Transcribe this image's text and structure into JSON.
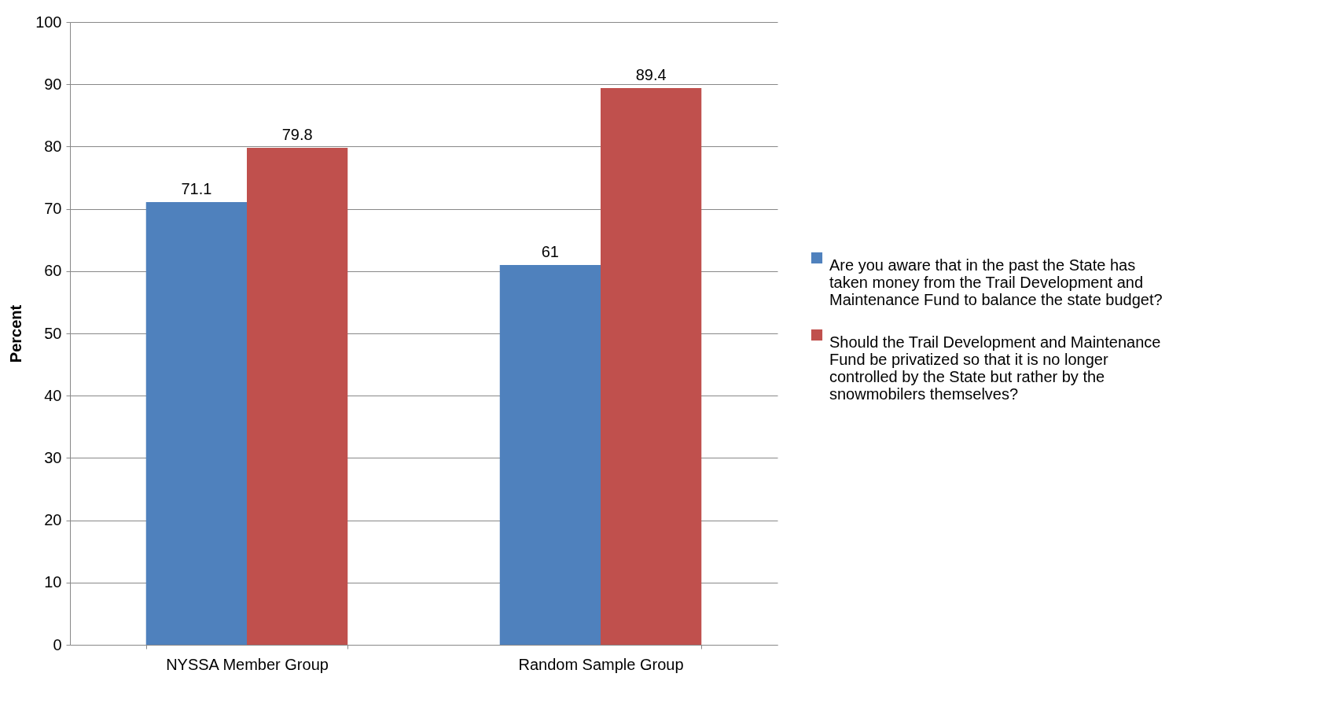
{
  "chart_data": {
    "type": "bar",
    "ylabel": "Percent",
    "categories": [
      "NYSSA Member Group",
      "Random Sample Group"
    ],
    "series": [
      {
        "name": "Are you aware that in the past the State has taken money from the Trail Development and Maintenance Fund to balance the state budget?",
        "color": "#4f81bd",
        "values": [
          71.1,
          61
        ]
      },
      {
        "name": "Should the Trail Development and Maintenance Fund be privatized so that it is no longer controlled by the State but rather by the snowmobilers themselves?",
        "color": "#c0504d",
        "values": [
          79.8,
          89.4
        ]
      }
    ],
    "ylim": [
      0,
      100
    ],
    "yticks": [
      0,
      10,
      20,
      30,
      40,
      50,
      60,
      70,
      80,
      90,
      100
    ],
    "grid": "y",
    "legend": "right",
    "data_labels": true
  }
}
